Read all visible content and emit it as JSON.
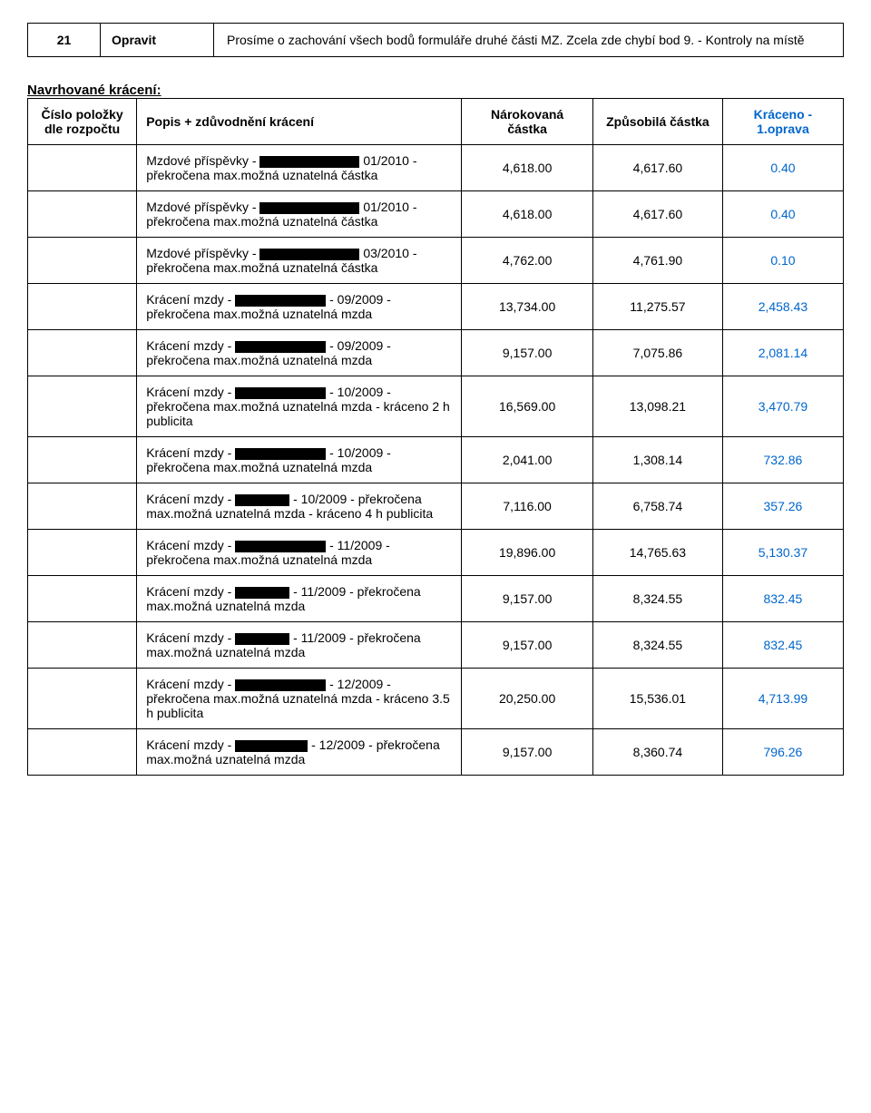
{
  "top": {
    "number": "21",
    "action": "Opravit",
    "description": "Prosíme o zachování všech bodů formuláře druhé části MZ. Zcela zde chybí bod 9. - Kontroly na místě"
  },
  "heading": "Navrhované krácení:",
  "columns": {
    "cislo": "Číslo položky dle rozpočtu",
    "popis": "Popis + zdůvodnění krácení",
    "narokovana": "Nárokovaná částka",
    "zpusobila": "Způsobilá částka",
    "kraceno": "Kráceno - 1.oprava"
  },
  "rows": [
    {
      "p1": "Mzdové příspěvky - ",
      "rw": "w110",
      "p2": " 01/2010 - překročena max.možná uznatelná částka",
      "nar": "4,618.00",
      "zpu": "4,617.60",
      "krac": "0.40"
    },
    {
      "p1": "Mzdové příspěvky - ",
      "rw": "w110",
      "p2": " 01/2010 - překročena max.možná uznatelná částka",
      "nar": "4,618.00",
      "zpu": "4,617.60",
      "krac": "0.40"
    },
    {
      "p1": "Mzdové příspěvky - ",
      "rw": "w110",
      "p2": " 03/2010 - překročena max.možná uznatelná částka",
      "nar": "4,762.00",
      "zpu": "4,761.90",
      "krac": "0.10"
    },
    {
      "p1": "Krácení mzdy - ",
      "rw": "w100",
      "p2": " - 09/2009 - překročena max.možná uznatelná mzda",
      "nar": "13,734.00",
      "zpu": "11,275.57",
      "krac": "2,458.43"
    },
    {
      "p1": "Krácení mzdy - ",
      "rw": "w100",
      "p2": " - 09/2009 - překročena max.možná uznatelná mzda",
      "nar": "9,157.00",
      "zpu": "7,075.86",
      "krac": "2,081.14"
    },
    {
      "p1": "Krácení mzdy - ",
      "rw": "w100",
      "p2": " - 10/2009 - překročena max.možná uznatelná mzda - kráceno 2 h publicita",
      "nar": "16,569.00",
      "zpu": "13,098.21",
      "krac": "3,470.79"
    },
    {
      "p1": "Krácení mzdy - ",
      "rw": "w100",
      "p2": " - 10/2009 - překročena max.možná uznatelná mzda",
      "nar": "2,041.00",
      "zpu": "1,308.14",
      "krac": "732.86"
    },
    {
      "p1": "Krácení mzdy - ",
      "rw": "w60",
      "p2": " - 10/2009 - překročena max.možná uznatelná mzda - kráceno 4 h publicita",
      "nar": "7,116.00",
      "zpu": "6,758.74",
      "krac": "357.26"
    },
    {
      "p1": "Krácení mzdy - ",
      "rw": "w100",
      "p2": " - 11/2009 - překročena max.možná uznatelná mzda",
      "nar": "19,896.00",
      "zpu": "14,765.63",
      "krac": "5,130.37"
    },
    {
      "p1": "Krácení mzdy - ",
      "rw": "w60",
      "p2": " - 11/2009 - překročena max.možná uznatelná mzda",
      "nar": "9,157.00",
      "zpu": "8,324.55",
      "krac": "832.45"
    },
    {
      "p1": "Krácení mzdy - ",
      "rw": "w60",
      "p2": " - 11/2009 - překročena max.možná uznatelná mzda",
      "nar": "9,157.00",
      "zpu": "8,324.55",
      "krac": "832.45"
    },
    {
      "p1": "Krácení mzdy - ",
      "rw": "w100",
      "p2": " - 12/2009 - překročena max.možná uznatelná mzda - kráceno 3.5 h publicita",
      "nar": "20,250.00",
      "zpu": "15,536.01",
      "krac": "4,713.99"
    },
    {
      "p1": "Krácení mzdy - ",
      "rw": "w80",
      "p2": " - 12/2009 - překročena max.možná uznatelná mzda",
      "nar": "9,157.00",
      "zpu": "8,360.74",
      "krac": "796.26"
    }
  ]
}
